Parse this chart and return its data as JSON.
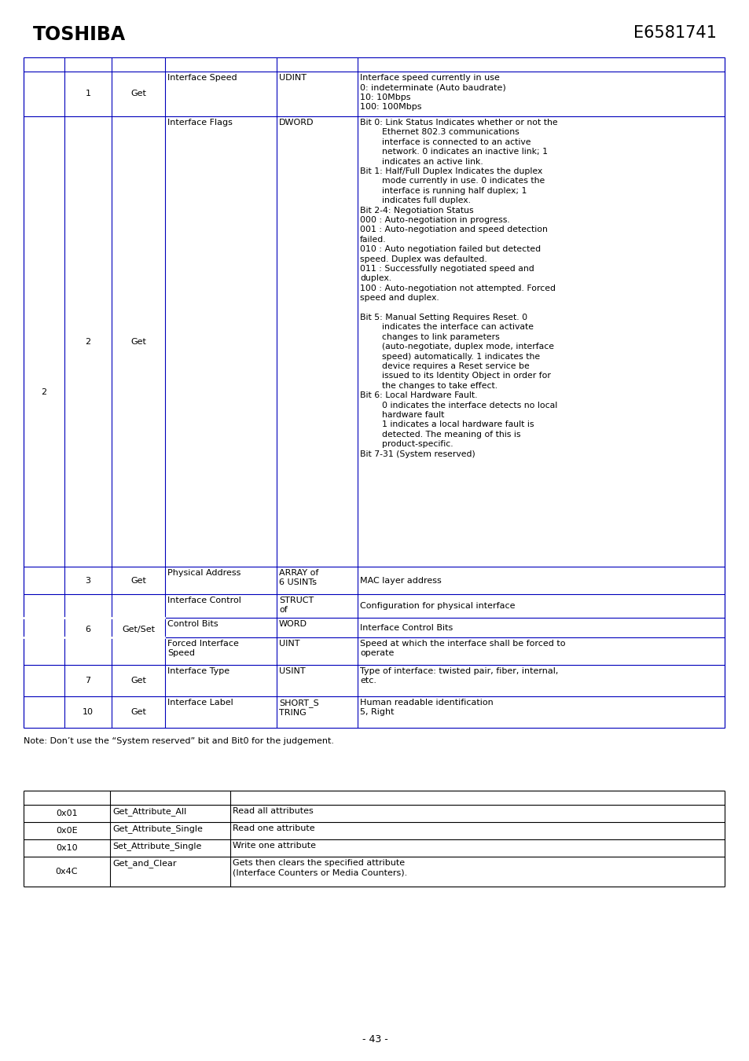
{
  "title_left": "TOSHIBA",
  "title_right": "E6581741",
  "page_number": "- 43 -",
  "note": "Note: Don’t use the “System reserved” bit and Bit0 for the judgement.",
  "table1_border_color": "#0000bb",
  "table2_border_color": "#000000",
  "bg_color": "#ffffff",
  "desc_row2": "Bit 0: Link Status Indicates whether or not the\n        Ethernet 802.3 communications\n        interface is connected to an active\n        network. 0 indicates an inactive link; 1\n        indicates an active link.\nBit 1: Half/Full Duplex Indicates the duplex\n        mode currently in use. 0 indicates the\n        interface is running half duplex; 1\n        indicates full duplex.\nBit 2-4: Negotiation Status\n000 : Auto-negotiation in progress.\n001 : Auto-negotiation and speed detection\nfailed.\n010 : Auto negotiation failed but detected\nspeed. Duplex was defaulted.\n011 : Successfully negotiated speed and\nduplex.\n100 : Auto-negotiation not attempted. Forced\nspeed and duplex.\n\nBit 5: Manual Setting Requires Reset. 0\n        indicates the interface can activate\n        changes to link parameters\n        (auto-negotiate, duplex mode, interface\n        speed) automatically. 1 indicates the\n        device requires a Reset service be\n        issued to its Identity Object in order for\n        the changes to take effect.\nBit 6: Local Hardware Fault.\n        0 indicates the interface detects no local\n        hardware fault\n        1 indicates a local hardware fault is\n        detected. The meaning of this is\n        product-specific.\nBit 7-31 (System reserved)",
  "second_table_rows": [
    [
      "0x01",
      "Get_Attribute_All",
      "Read all attributes"
    ],
    [
      "0x0E",
      "Get_Attribute_Single",
      "Read one attribute"
    ],
    [
      "0x10",
      "Set_Attribute_Single",
      "Write one attribute"
    ],
    [
      "0x4C",
      "Get_and_Clear",
      "Gets then clears the specified attribute\n(Interface Counters or Media Counters)."
    ]
  ]
}
